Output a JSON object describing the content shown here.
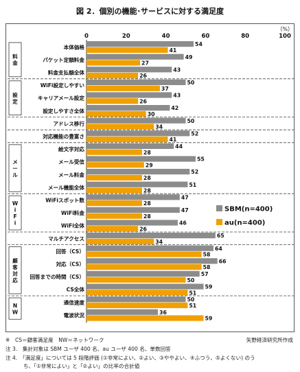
{
  "page_title": "図 2．個別の機能･サービスに対する満足度",
  "notes": {
    "note1": "※　CS＝顧客満足度　NW＝ネットワーク",
    "source": "矢野経済研究所作成",
    "note3": "注 3.　集計対象は SBM ユーザ 400 名、au ユーザ 400 名、単数回答",
    "note4a": "注 4.　「満足度」については 5 段階評価 (①非常によい、②よい、③ややよい、④ふつう、⑤よくない) のう",
    "note4b": "ち、「①非常によい」と「②よい」の比率の合計値"
  },
  "colors": {
    "sbm": "#8c8c8c",
    "au": "#f0a000",
    "frame": "#555555"
  },
  "chart_data": {
    "type": "bar",
    "orientation": "horizontal",
    "unit_label": "（%）",
    "xlim": [
      0,
      100
    ],
    "ticks": [
      0,
      20,
      40,
      60,
      80,
      100
    ],
    "legend_position": "right-middle",
    "series": [
      {
        "name": "SBM(n=400)",
        "values": [
          54,
          49,
          43,
          50,
          43,
          42,
          50,
          52,
          44,
          55,
          52,
          51,
          47,
          47,
          46,
          65,
          64,
          66,
          57,
          59,
          50,
          36
        ]
      },
      {
        "name": "au(n=400)",
        "values": [
          41,
          27,
          26,
          37,
          26,
          30,
          34,
          41,
          28,
          29,
          28,
          28,
          28,
          28,
          26,
          34,
          58,
          58,
          50,
          51,
          51,
          59
        ]
      }
    ],
    "categories": [
      "本体価格",
      "パケット定額料金",
      "料金支払額全体",
      "WiFi設定しやすい",
      "キャリアメール設定",
      "設定しやすさ全体",
      "アドレス移行",
      "対応機能の豊富さ",
      "絵文字対応",
      "メール受信",
      "メール料金",
      "メール機能全体",
      "WiFiスポット数",
      "WiFi料金",
      "WiFi全体",
      "マルチアクセス",
      "回答（CS）",
      "対応（CS）",
      "回答までの時間（CS）",
      "CS全体",
      "通信速度",
      "電波状況"
    ],
    "groups": [
      {
        "label": "料金",
        "start": 0,
        "end": 2
      },
      {
        "label": "設定",
        "start": 3,
        "end": 5
      },
      {
        "label": "メール",
        "start": 8,
        "end": 11
      },
      {
        "label": "WiFi",
        "start": 12,
        "end": 14
      },
      {
        "label": "顧客対応",
        "start": 16,
        "end": 19
      },
      {
        "label": "NW",
        "start": 20,
        "end": 21
      }
    ],
    "separators_after": [
      2,
      5,
      6,
      7,
      11,
      14,
      15,
      19
    ]
  }
}
